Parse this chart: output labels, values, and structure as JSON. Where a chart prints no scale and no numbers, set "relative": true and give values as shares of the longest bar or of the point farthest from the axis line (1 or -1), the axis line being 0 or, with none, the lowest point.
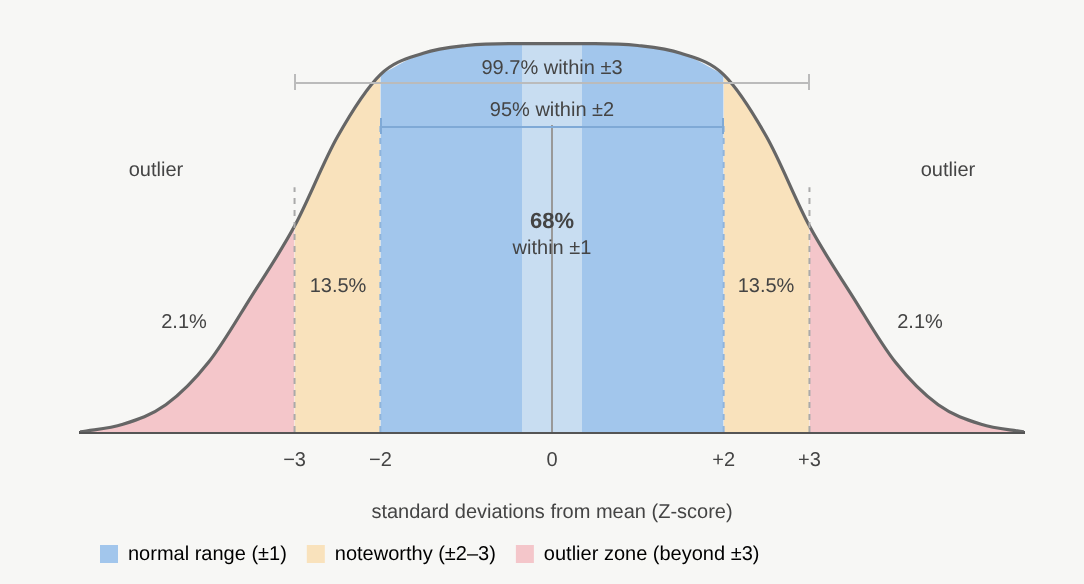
{
  "chart_data": {
    "type": "area",
    "relative": true,
    "xlabel": "standard deviations from mean (Z-score)",
    "xlim": [
      -5.5,
      5.5
    ],
    "xticks": [
      {
        "value": -3,
        "label": "−3"
      },
      {
        "value": -2,
        "label": "−2"
      },
      0,
      {
        "value": 2,
        "label": "+2"
      },
      {
        "value": 3,
        "label": "+3"
      }
    ],
    "series": [
      {
        "name": "normal range (±1)",
        "color": "#a2c6ec",
        "x": [
          -2,
          -1.5,
          -1,
          -0.5,
          0,
          0.5,
          1,
          1.5,
          2
        ],
        "values": [
          0.92,
          0.975,
          0.995,
          1,
          1,
          1,
          0.995,
          0.975,
          0.92
        ]
      },
      {
        "name": "noteworthy (±2–3)",
        "color": "#f9e2bc",
        "x": [
          -3,
          -2.5,
          -2,
          0,
          2,
          2.5,
          3
        ],
        "values": [
          0.53,
          0.76,
          0.92,
          null,
          0.92,
          0.76,
          0.53
        ]
      },
      {
        "name": "outlier zone (beyond ±3)",
        "color": "#f4c6ca",
        "x": [
          -5.5,
          -5,
          -4.5,
          -4,
          -3.5,
          -3,
          0,
          3,
          3.5,
          4,
          4.5,
          5,
          5.5
        ],
        "values": [
          0,
          0.02,
          0.07,
          0.18,
          0.35,
          0.53,
          null,
          0.53,
          0.35,
          0.18,
          0.07,
          0.02,
          0
        ]
      },
      {
        "type": "area",
        "color": "#c8ddf1",
        "x": [
          -0.35,
          0,
          0.35
        ],
        "values": [
          1,
          1,
          1
        ]
      },
      {
        "type": "line",
        "color": "#666666",
        "x": [
          -5.5,
          -5,
          -4.5,
          -4,
          -3.5,
          -3,
          -2.5,
          -2,
          -1.5,
          -1,
          -0.5,
          0,
          0.5,
          1,
          1.5,
          2,
          2.5,
          3,
          3.5,
          4,
          4.5,
          5,
          5.5
        ],
        "values": [
          0,
          0.02,
          0.07,
          0.18,
          0.35,
          0.53,
          0.76,
          0.92,
          0.975,
          0.995,
          1,
          1,
          1,
          0.995,
          0.975,
          0.92,
          0.76,
          0.53,
          0.35,
          0.18,
          0.07,
          0.02,
          0
        ]
      }
    ],
    "ref_lines": [
      {
        "axis": "x",
        "value": -3,
        "line_style": "dashed",
        "color": "#aaaaaa"
      },
      {
        "axis": "x",
        "value": 3,
        "line_style": "dashed",
        "color": "#aaaaaa"
      },
      {
        "axis": "x",
        "value": -2,
        "line_style": "dashed",
        "color": "#8fb4dc"
      },
      {
        "axis": "x",
        "value": 2,
        "line_style": "dashed",
        "color": "#8fb4dc"
      },
      {
        "axis": "x",
        "value": 0,
        "line_style": "solid",
        "color": "#999999"
      }
    ],
    "annotations": [
      "99.7% within ±3",
      "95% within ±2",
      "outlier",
      "outlier",
      "2.1%",
      "2.1%",
      "13.5%",
      "13.5%",
      "68%",
      "within ±1"
    ],
    "legend": "bottom left",
    "grid": false,
    "marker": "none",
    "line_style": "solid"
  }
}
